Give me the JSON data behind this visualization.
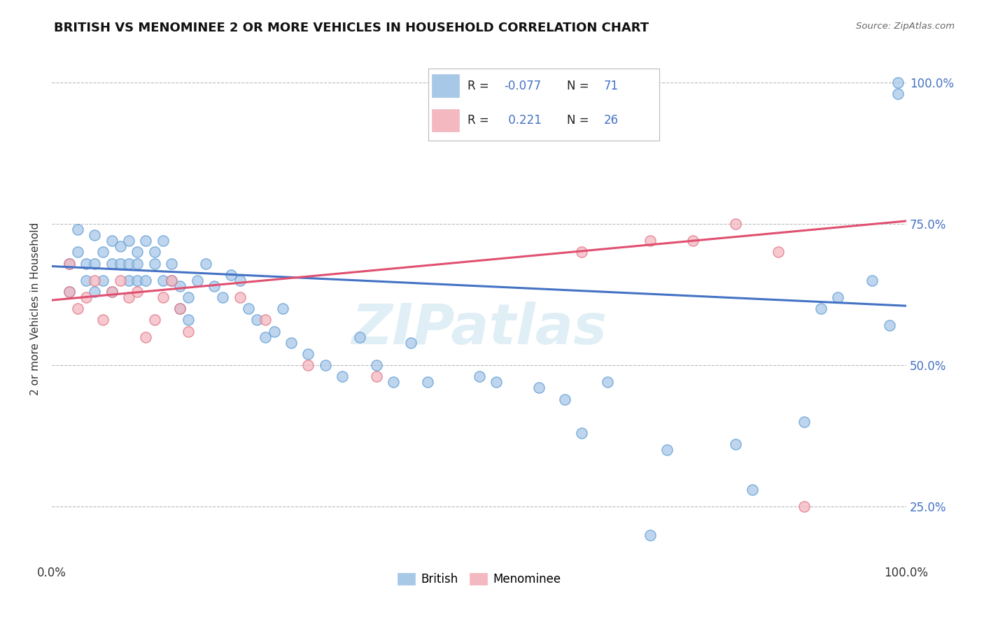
{
  "title": "BRITISH VS MENOMINEE 2 OR MORE VEHICLES IN HOUSEHOLD CORRELATION CHART",
  "source": "Source: ZipAtlas.com",
  "ylabel": "2 or more Vehicles in Household",
  "xlim": [
    0.0,
    1.0
  ],
  "ylim": [
    0.15,
    1.05
  ],
  "y_ticks": [
    0.25,
    0.5,
    0.75,
    1.0
  ],
  "y_tick_labels": [
    "25.0%",
    "50.0%",
    "75.0%",
    "100.0%"
  ],
  "x_ticks": [
    0.0,
    1.0
  ],
  "x_tick_labels": [
    "0.0%",
    "100.0%"
  ],
  "british_R": -0.077,
  "british_N": 71,
  "menominee_R": 0.221,
  "menominee_N": 26,
  "british_color": "#a8c8e8",
  "british_edge_color": "#5b9bd5",
  "menominee_color": "#f4b8c1",
  "menominee_edge_color": "#e07080",
  "british_line_color": "#4472c4",
  "menominee_line_color": "#e05070",
  "watermark_color": "#cce4f0",
  "legend_labels": [
    "British",
    "Menominee"
  ],
  "british_line_y0": 0.675,
  "british_line_y1": 0.605,
  "menominee_line_y0": 0.615,
  "menominee_line_y1": 0.755,
  "british_x": [
    0.02,
    0.02,
    0.03,
    0.03,
    0.04,
    0.04,
    0.05,
    0.05,
    0.05,
    0.06,
    0.06,
    0.07,
    0.07,
    0.07,
    0.08,
    0.08,
    0.09,
    0.09,
    0.09,
    0.1,
    0.1,
    0.1,
    0.11,
    0.11,
    0.12,
    0.12,
    0.13,
    0.13,
    0.14,
    0.14,
    0.15,
    0.15,
    0.16,
    0.16,
    0.17,
    0.18,
    0.19,
    0.2,
    0.21,
    0.22,
    0.23,
    0.24,
    0.25,
    0.26,
    0.27,
    0.28,
    0.3,
    0.32,
    0.34,
    0.36,
    0.38,
    0.4,
    0.42,
    0.44,
    0.5,
    0.52,
    0.57,
    0.6,
    0.62,
    0.65,
    0.7,
    0.72,
    0.8,
    0.82,
    0.88,
    0.9,
    0.92,
    0.96,
    0.98,
    0.99,
    0.99
  ],
  "british_y": [
    0.63,
    0.68,
    0.7,
    0.74,
    0.65,
    0.68,
    0.73,
    0.68,
    0.63,
    0.7,
    0.65,
    0.72,
    0.68,
    0.63,
    0.68,
    0.71,
    0.65,
    0.68,
    0.72,
    0.65,
    0.7,
    0.68,
    0.72,
    0.65,
    0.68,
    0.7,
    0.72,
    0.65,
    0.68,
    0.65,
    0.6,
    0.64,
    0.58,
    0.62,
    0.65,
    0.68,
    0.64,
    0.62,
    0.66,
    0.65,
    0.6,
    0.58,
    0.55,
    0.56,
    0.6,
    0.54,
    0.52,
    0.5,
    0.48,
    0.55,
    0.5,
    0.47,
    0.54,
    0.47,
    0.48,
    0.47,
    0.46,
    0.44,
    0.38,
    0.47,
    0.2,
    0.35,
    0.36,
    0.28,
    0.4,
    0.6,
    0.62,
    0.65,
    0.57,
    1.0,
    0.98
  ],
  "menominee_x": [
    0.02,
    0.02,
    0.03,
    0.04,
    0.05,
    0.06,
    0.07,
    0.08,
    0.09,
    0.1,
    0.11,
    0.12,
    0.13,
    0.14,
    0.15,
    0.16,
    0.22,
    0.25,
    0.3,
    0.38,
    0.62,
    0.7,
    0.75,
    0.8,
    0.85,
    0.88
  ],
  "menominee_y": [
    0.63,
    0.68,
    0.6,
    0.62,
    0.65,
    0.58,
    0.63,
    0.65,
    0.62,
    0.63,
    0.55,
    0.58,
    0.62,
    0.65,
    0.6,
    0.56,
    0.62,
    0.58,
    0.5,
    0.48,
    0.7,
    0.72,
    0.72,
    0.75,
    0.7,
    0.25
  ]
}
